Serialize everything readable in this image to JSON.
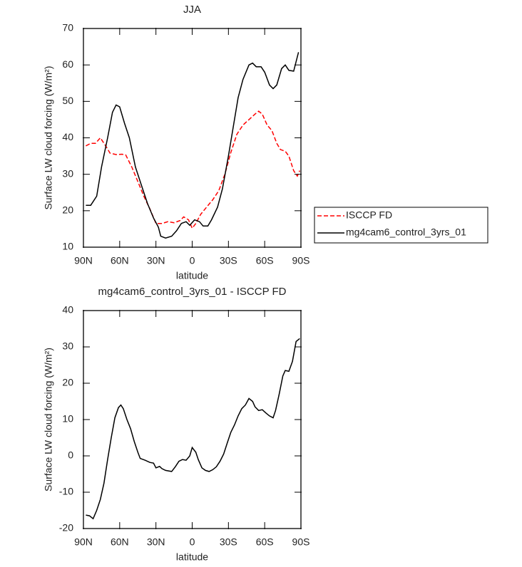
{
  "chart_data": [
    {
      "type": "line",
      "title": "JJA",
      "xlabel": "latitude",
      "ylabel": "Surface LW cloud forcing (W/m²)",
      "xlim": [
        90,
        -90
      ],
      "ylim": [
        10,
        70
      ],
      "xticks": [
        {
          "value": 90,
          "label": "90N"
        },
        {
          "value": 60,
          "label": "60N"
        },
        {
          "value": 30,
          "label": "30N"
        },
        0,
        {
          "value": -30,
          "label": "30S"
        },
        {
          "value": -60,
          "label": "60S"
        },
        {
          "value": -90,
          "label": "90S"
        }
      ],
      "yticks": [
        10,
        20,
        30,
        40,
        50,
        60,
        70
      ],
      "legend": "right",
      "series": [
        {
          "name": "ISCCP FD",
          "color": "#ff0000",
          "dashed": true,
          "x": [
            88,
            84,
            80,
            76,
            72,
            68,
            63,
            58,
            55,
            50,
            45,
            40,
            35,
            30,
            25,
            20,
            15,
            10,
            7,
            3,
            0,
            -3,
            -7,
            -12,
            -17,
            -22,
            -27,
            -32,
            -37,
            -42,
            -47,
            -52,
            -55,
            -58,
            -62,
            -66,
            -70,
            -73,
            -77,
            -80,
            -84,
            -87,
            -89
          ],
          "values": [
            37.8,
            38.5,
            38.5,
            40,
            38,
            35.8,
            35.4,
            35.5,
            35.3,
            32,
            28,
            24,
            20.5,
            16.5,
            16.5,
            17,
            16.7,
            17.3,
            18.3,
            17.5,
            15.2,
            16.5,
            19,
            21,
            23,
            25.5,
            30,
            36,
            41,
            43.5,
            45,
            46.5,
            47.3,
            46.5,
            43.5,
            42,
            38.5,
            36.8,
            36.3,
            35,
            31,
            29.5,
            31
          ]
        },
        {
          "name": "mg4cam6_control_3yrs_01",
          "color": "#000000",
          "dashed": false,
          "x": [
            88,
            84,
            79,
            75,
            70,
            66,
            63,
            60,
            56,
            52,
            47,
            42,
            37,
            32,
            28,
            26,
            22,
            17,
            13,
            9,
            5,
            2,
            -2,
            -6,
            -9,
            -13,
            -16,
            -21,
            -25,
            -30,
            -34,
            -38,
            -42,
            -47,
            -50,
            -53,
            -57,
            -60,
            -64,
            -67,
            -70,
            -74,
            -77,
            -80,
            -84,
            -88
          ],
          "values": [
            21.5,
            21.5,
            24,
            32,
            40,
            47,
            49,
            48.5,
            44,
            40,
            32,
            27,
            22,
            18,
            15.5,
            13,
            12.5,
            13,
            14.5,
            16.5,
            17,
            16,
            17.5,
            17,
            15.8,
            15.8,
            17.5,
            21,
            26,
            35,
            43,
            51,
            56,
            60,
            60.5,
            59.5,
            59.5,
            58,
            54.5,
            53.5,
            54.5,
            59,
            60,
            58.5,
            58.3,
            63.5
          ]
        }
      ]
    },
    {
      "type": "line",
      "title": "mg4cam6_control_3yrs_01 - ISCCP FD",
      "xlabel": "latitude",
      "ylabel": "Surface LW cloud forcing (W/m²)",
      "xlim": [
        90,
        -90
      ],
      "ylim": [
        -20,
        40
      ],
      "xticks": [
        {
          "value": 90,
          "label": "90N"
        },
        {
          "value": 60,
          "label": "60N"
        },
        {
          "value": 30,
          "label": "30N"
        },
        0,
        {
          "value": -30,
          "label": "30S"
        },
        {
          "value": -60,
          "label": "60S"
        },
        {
          "value": -90,
          "label": "90S"
        }
      ],
      "yticks": [
        -20,
        -10,
        0,
        10,
        20,
        30,
        40
      ],
      "series": [
        {
          "color": "#000000",
          "dashed": false,
          "x": [
            88,
            85,
            82,
            79,
            76,
            73,
            70,
            67,
            64,
            61,
            59,
            57,
            54,
            51,
            48,
            45,
            43,
            39,
            35,
            32,
            30,
            27,
            25,
            22,
            17,
            14,
            11,
            8,
            5,
            2,
            0,
            -3,
            -5,
            -8,
            -11,
            -14,
            -17,
            -20,
            -23,
            -26,
            -29,
            -32,
            -35,
            -38,
            -41,
            -44,
            -47,
            -50,
            -52,
            -55,
            -58,
            -61,
            -64,
            -67,
            -69,
            -72,
            -75,
            -77,
            -80,
            -83,
            -86,
            -89
          ],
          "values": [
            -16.3,
            -16.5,
            -17.3,
            -15,
            -12,
            -7.5,
            -1,
            5,
            10.5,
            13.3,
            14,
            13,
            10,
            7.5,
            4,
            1,
            -0.7,
            -1.2,
            -1.8,
            -2,
            -3.3,
            -2.9,
            -3.5,
            -4,
            -4.3,
            -3,
            -1.5,
            -1,
            -1.2,
            0,
            2.3,
            1,
            -1,
            -3.3,
            -4,
            -4.3,
            -3.8,
            -3,
            -1.5,
            0.5,
            3.5,
            6.5,
            8.5,
            11,
            13,
            14,
            15.8,
            15,
            13.5,
            12.5,
            12.7,
            11.8,
            11,
            10.5,
            12.5,
            17,
            22,
            23.5,
            23.3,
            26,
            31.5,
            32.3
          ]
        }
      ]
    }
  ]
}
